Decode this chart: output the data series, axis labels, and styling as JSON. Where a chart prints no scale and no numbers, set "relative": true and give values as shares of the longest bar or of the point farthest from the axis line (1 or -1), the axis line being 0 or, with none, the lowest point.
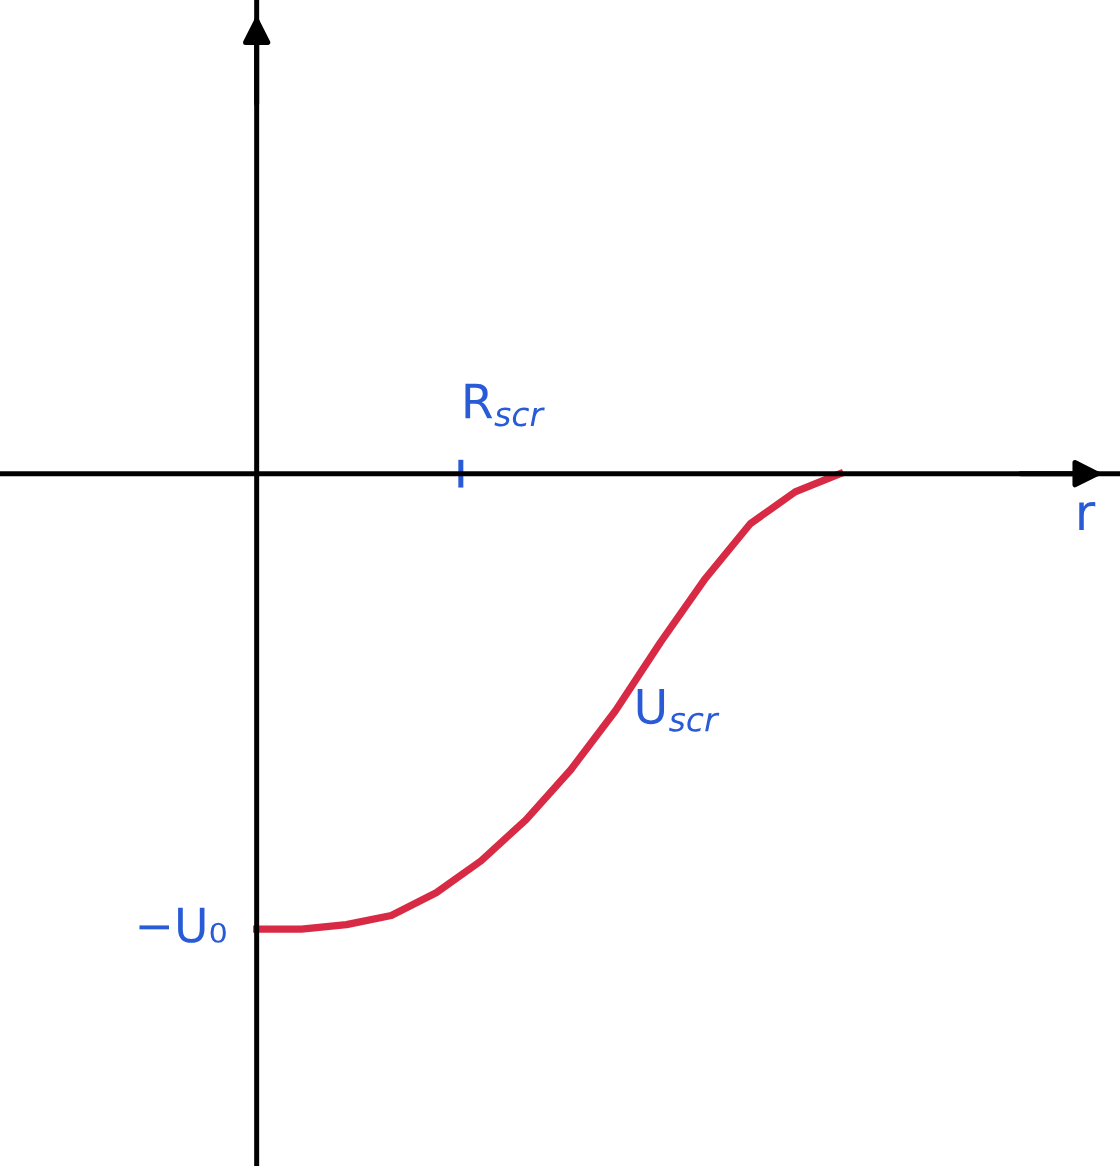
{
  "chart_data": {
    "type": "line",
    "relative": true,
    "xlabel": "r",
    "categories": [
      null,
      null,
      null,
      null,
      null,
      null,
      null,
      null,
      null,
      null,
      null,
      null,
      null,
      null
    ],
    "series": [
      {
        "name": "U$_{scr}$",
        "color": "#d82a45",
        "values": [
          -1,
          -1,
          -0.99,
          -0.97,
          -0.92,
          -0.85,
          -0.76,
          -0.65,
          -0.52,
          -0.37,
          -0.23,
          -0.11,
          -0.04,
          0
        ]
      }
    ],
    "annotations": [
      "R$_{scr}$",
      "−U₀"
    ],
    "marker": "none",
    "line_style": "solid",
    "legend": false
  }
}
